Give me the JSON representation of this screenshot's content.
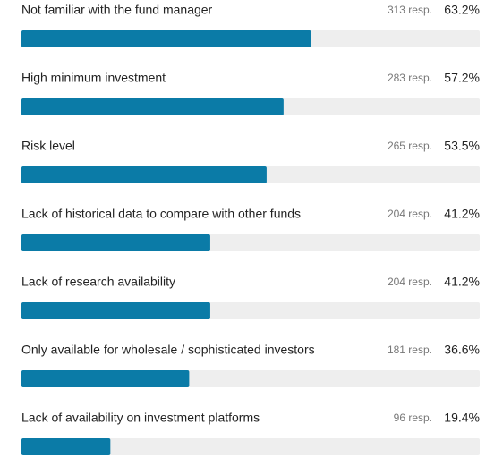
{
  "chart_data": {
    "type": "bar",
    "orientation": "horizontal",
    "categories": [
      "Not familiar with the fund manager",
      "High minimum investment",
      "Risk level",
      "Lack of historical data to compare with other funds",
      "Lack of research availability",
      "Only available for wholesale / sophisticated investors",
      "Lack of availability on investment platforms"
    ],
    "values": [
      63.2,
      57.2,
      53.5,
      41.2,
      41.2,
      36.6,
      19.4
    ],
    "value_labels": [
      "63.2%",
      "57.2%",
      "53.5%",
      "41.2%",
      "41.2%",
      "36.6%",
      "19.4%"
    ],
    "responses": [
      313,
      283,
      265,
      204,
      204,
      181,
      96
    ],
    "response_labels": [
      "313 resp.",
      "283 resp.",
      "265 resp.",
      "204 resp.",
      "204 resp.",
      "181 resp.",
      "96 resp."
    ],
    "xlim": [
      0,
      100
    ],
    "color": "#0b7ba7",
    "track_color": "#eeeeee"
  }
}
